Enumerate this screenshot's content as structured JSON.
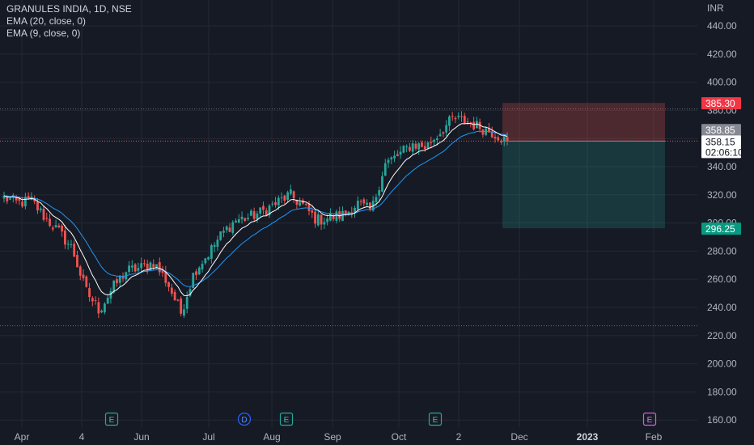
{
  "header": {
    "symbol_line": "GRANULES INDIA, 1D, NSE",
    "indicators": [
      "EMA (20, close, 0)",
      "EMA (9, close, 0)"
    ],
    "currency": "INR"
  },
  "chart_data": {
    "type": "candlestick",
    "title": "GRANULES INDIA, 1D, NSE",
    "ylabel": "INR",
    "ylim": [
      155,
      445
    ],
    "y_ticks": [
      440,
      420,
      400,
      380,
      360,
      340,
      320,
      300,
      280,
      260,
      240,
      220,
      200,
      180,
      160
    ],
    "x_labels": [
      "Apr",
      "4",
      "Jun",
      "Jul",
      "Aug",
      "Sep",
      "Oct",
      "2",
      "Dec",
      "2023",
      "Feb"
    ],
    "x_labels_bold": [
      "2023"
    ],
    "price_labels": {
      "stop_loss": "385.30",
      "previous_close": "358.85",
      "last_price": "358.15",
      "countdown": "02:06:10",
      "target": "296.25"
    },
    "price_levels": {
      "stop_loss": 385.3,
      "entry": 358.15,
      "target": 296.25,
      "high_line": 381,
      "low_line": 227
    },
    "events": [
      {
        "marker": "E",
        "date_label": "May"
      },
      {
        "marker": "D",
        "date_label": "Jul"
      },
      {
        "marker": "E",
        "date_label": "Aug"
      },
      {
        "marker": "E",
        "date_label": "Nov"
      },
      {
        "marker": "E",
        "date_label": "Feb"
      }
    ],
    "anchors": [
      [
        "Apr 1",
        318
      ],
      [
        "Apr 8",
        314
      ],
      [
        "Apr 14",
        316
      ],
      [
        "Apr 21",
        304
      ],
      [
        "Apr 28",
        294
      ],
      [
        "May 6",
        282
      ],
      [
        "May 13",
        252
      ],
      [
        "May 18",
        238
      ],
      [
        "May 25",
        254
      ],
      [
        "May 31",
        266
      ],
      [
        "Jun 7",
        268
      ],
      [
        "Jun 14",
        272
      ],
      [
        "Jun 20",
        258
      ],
      [
        "Jun 24",
        236
      ],
      [
        "Jun 30",
        266
      ],
      [
        "Jul 7",
        278
      ],
      [
        "Jul 13",
        292
      ],
      [
        "Jul 20",
        302
      ],
      [
        "Jul 27",
        304
      ],
      [
        "Aug 3",
        308
      ],
      [
        "Aug 10",
        314
      ],
      [
        "Aug 17",
        320
      ],
      [
        "Aug 24",
        312
      ],
      [
        "Aug 31",
        302
      ],
      [
        "Sep 7",
        304
      ],
      [
        "Sep 14",
        306
      ],
      [
        "Sep 21",
        314
      ],
      [
        "Sep 27",
        308
      ],
      [
        "Oct 4",
        342
      ],
      [
        "Oct 11",
        348
      ],
      [
        "Oct 18",
        356
      ],
      [
        "Oct 21",
        354
      ],
      [
        "Oct 25",
        364
      ],
      [
        "Oct 28",
        374
      ],
      [
        "Nov 3",
        372
      ],
      [
        "Nov 10",
        368
      ],
      [
        "Nov 17",
        364
      ],
      [
        "Nov 22",
        358
      ]
    ],
    "last_index": 165,
    "series": [
      {
        "name": "EMA (20, close, 0)",
        "period": 20,
        "color": "#2196f3"
      },
      {
        "name": "EMA (9, close, 0)",
        "period": 9,
        "color": "#ffffff"
      }
    ],
    "colors": {
      "background": "#161a25",
      "up": "#26a69a",
      "down": "#ef5350",
      "stop_zone": "#ef5350",
      "target_zone": "#26a69a",
      "grid": "#242833",
      "axis_text": "#b2b5be",
      "event_marker": "#26a69a",
      "dividend_marker": "#2962ff",
      "future_event_marker": "#d65ddc"
    }
  }
}
